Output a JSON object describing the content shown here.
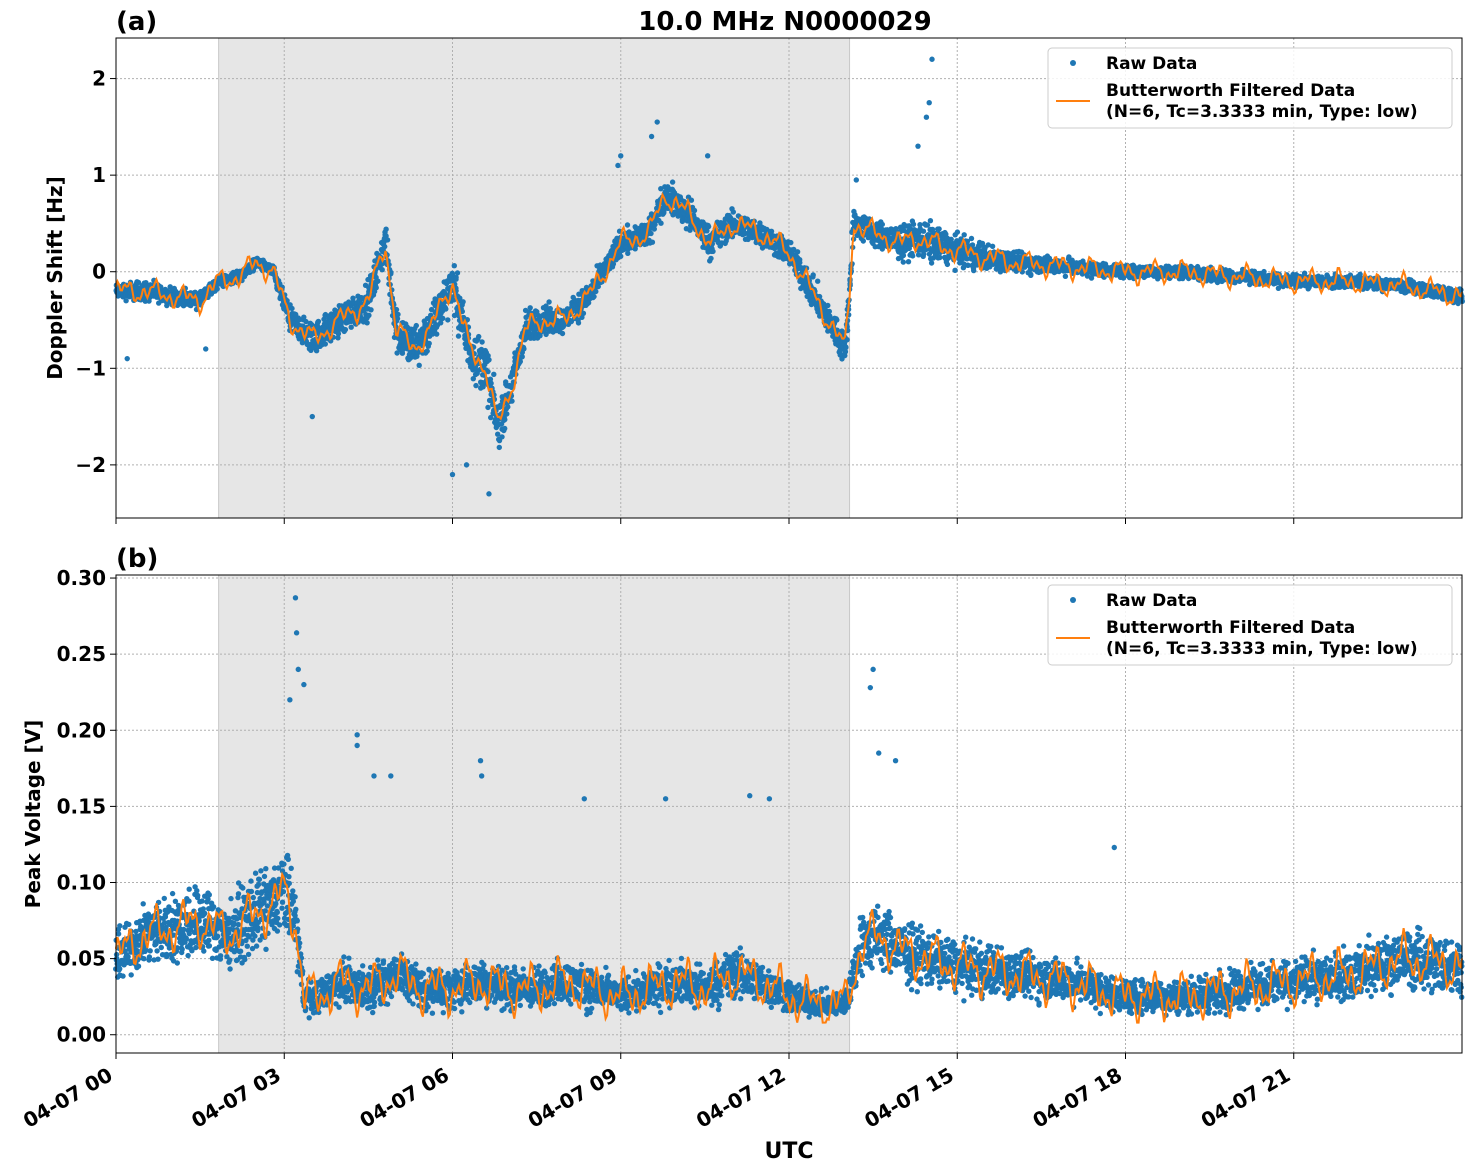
{
  "figure_title": "10.0 MHz N0000029",
  "xlabel": "UTC",
  "colors": {
    "raw": "#1f77b4",
    "filtered": "#ff7f0e",
    "shade": "#e6e6e6",
    "grid": "#b0b0b0",
    "legend_border": "#cccccc"
  },
  "legend": {
    "raw": "Raw Data",
    "filtered_line1": "Butterworth Filtered Data",
    "filtered_line2": "(N=6, Tc=3.3333 min, Type: low)"
  },
  "chart_data": [
    {
      "panel_label": "(a)",
      "type": "scatter",
      "ylabel": "Doppler Shift [Hz]",
      "x_unit": "hours UTC on 04-07",
      "xlim": [
        0,
        24
      ],
      "ylim": [
        -2.55,
        2.42
      ],
      "grid": true,
      "legend_position": "top-right",
      "shaded_interval_hours": [
        1.83,
        13.08
      ],
      "x_tick_values": [
        0,
        3,
        6,
        9,
        12,
        15,
        18,
        21
      ],
      "x_tick_labels": [
        "04-07 00",
        "04-07 03",
        "04-07 06",
        "04-07 09",
        "04-07 12",
        "04-07 15",
        "04-07 18",
        "04-07 21"
      ],
      "y_ticks": [
        2,
        1,
        0,
        -1,
        -2
      ],
      "y_tick_labels": [
        "2",
        "1",
        "0",
        "−1",
        "−2"
      ],
      "series": [
        {
          "name": "Raw Data",
          "style": "points",
          "envelope": {
            "x": [
              0,
              0.5,
              1,
              1.5,
              1.83,
              2.2,
              2.5,
              2.8,
              3.1,
              3.5,
              4,
              4.5,
              4.8,
              5,
              5.3,
              5.6,
              6,
              6.3,
              6.6,
              6.8,
              7,
              7.3,
              7.6,
              8,
              8.5,
              9,
              9.5,
              9.8,
              10.2,
              10.6,
              11,
              11.5,
              12,
              12.4,
              12.8,
              13.0,
              13.08,
              13.15,
              13.5,
              14,
              14.3,
              14.5,
              14.8,
              15.5,
              16,
              17,
              18,
              19,
              20,
              21,
              22,
              23,
              24
            ],
            "y": [
              -0.2,
              -0.2,
              -0.25,
              -0.3,
              -0.1,
              -0.05,
              0.1,
              0.0,
              -0.5,
              -0.7,
              -0.5,
              -0.3,
              0.3,
              -0.6,
              -0.8,
              -0.6,
              -0.1,
              -0.8,
              -1.0,
              -1.6,
              -1.3,
              -0.6,
              -0.5,
              -0.5,
              -0.2,
              0.3,
              0.4,
              0.8,
              0.6,
              0.3,
              0.5,
              0.4,
              0.2,
              -0.2,
              -0.6,
              -0.8,
              -0.2,
              0.5,
              0.4,
              0.3,
              0.35,
              0.3,
              0.25,
              0.15,
              0.1,
              0.05,
              0.0,
              0.0,
              -0.05,
              -0.1,
              -0.1,
              -0.15,
              -0.25
            ],
            "spread": [
              0.15,
              0.2,
              0.15,
              0.15,
              0.12,
              0.12,
              0.1,
              0.12,
              0.25,
              0.3,
              0.3,
              0.35,
              0.35,
              0.45,
              0.45,
              0.4,
              0.45,
              0.5,
              0.5,
              0.45,
              0.4,
              0.35,
              0.3,
              0.25,
              0.25,
              0.25,
              0.25,
              0.3,
              0.3,
              0.3,
              0.25,
              0.25,
              0.25,
              0.3,
              0.3,
              0.35,
              0.4,
              0.3,
              0.25,
              0.3,
              0.35,
              0.4,
              0.3,
              0.25,
              0.2,
              0.15,
              0.12,
              0.12,
              0.12,
              0.12,
              0.12,
              0.12,
              0.15
            ]
          },
          "outliers": [
            [
              14.55,
              2.2
            ],
            [
              14.5,
              1.75
            ],
            [
              14.45,
              1.6
            ],
            [
              9.65,
              1.55
            ],
            [
              9.55,
              1.4
            ],
            [
              14.3,
              1.3
            ],
            [
              9.0,
              1.2
            ],
            [
              8.95,
              1.1
            ],
            [
              10.55,
              1.2
            ],
            [
              13.2,
              0.95
            ],
            [
              6.65,
              -2.3
            ],
            [
              6.0,
              -2.1
            ],
            [
              6.25,
              -2.0
            ],
            [
              3.5,
              -1.5
            ],
            [
              1.6,
              -0.8
            ],
            [
              0.2,
              -0.9
            ]
          ]
        },
        {
          "name": "Butterworth Filtered Data",
          "style": "line",
          "x": [
            0,
            0.5,
            1,
            1.5,
            1.83,
            2.2,
            2.5,
            2.8,
            3.1,
            3.5,
            4,
            4.5,
            4.8,
            5,
            5.3,
            5.6,
            6,
            6.3,
            6.6,
            6.8,
            7,
            7.3,
            7.6,
            8,
            8.5,
            9,
            9.5,
            9.8,
            10.2,
            10.6,
            11,
            11.5,
            12,
            12.4,
            12.8,
            13.0,
            13.08,
            13.15,
            13.5,
            14,
            14.3,
            14.5,
            14.8,
            15.5,
            16,
            17,
            18,
            19,
            20,
            21,
            22,
            23,
            24
          ],
          "y": [
            -0.2,
            -0.2,
            -0.25,
            -0.3,
            -0.1,
            -0.05,
            0.1,
            0.0,
            -0.5,
            -0.7,
            -0.5,
            -0.3,
            0.3,
            -0.6,
            -0.8,
            -0.6,
            -0.1,
            -0.8,
            -1.0,
            -1.6,
            -1.3,
            -0.6,
            -0.5,
            -0.5,
            -0.2,
            0.3,
            0.4,
            0.8,
            0.6,
            0.3,
            0.5,
            0.4,
            0.2,
            -0.2,
            -0.6,
            -0.8,
            -0.2,
            0.5,
            0.4,
            0.3,
            0.35,
            0.3,
            0.25,
            0.15,
            0.1,
            0.05,
            0.0,
            0.0,
            -0.05,
            -0.1,
            -0.1,
            -0.15,
            -0.25
          ],
          "wiggle": 0.12
        }
      ]
    },
    {
      "panel_label": "(b)",
      "type": "scatter",
      "ylabel": "Peak Voltage [V]",
      "x_unit": "hours UTC on 04-07",
      "xlim": [
        0,
        24
      ],
      "ylim": [
        -0.012,
        0.302
      ],
      "grid": true,
      "legend_position": "top-right",
      "shaded_interval_hours": [
        1.83,
        13.08
      ],
      "x_tick_values": [
        0,
        3,
        6,
        9,
        12,
        15,
        18,
        21
      ],
      "x_tick_labels": [
        "04-07 00",
        "04-07 03",
        "04-07 06",
        "04-07 09",
        "04-07 12",
        "04-07 15",
        "04-07 18",
        "04-07 21"
      ],
      "y_ticks": [
        0.0,
        0.05,
        0.1,
        0.15,
        0.2,
        0.25,
        0.3
      ],
      "y_tick_labels": [
        "0.00",
        "0.05",
        "0.10",
        "0.15",
        "0.20",
        "0.25",
        "0.30"
      ],
      "series": [
        {
          "name": "Raw Data",
          "style": "points",
          "envelope": {
            "x": [
              0,
              0.5,
              1,
              1.5,
              2,
              2.5,
              2.8,
              3.0,
              3.2,
              3.35,
              3.6,
              4,
              4.5,
              5,
              5.5,
              6,
              6.5,
              7,
              7.5,
              8,
              8.5,
              9,
              9.5,
              10,
              10.5,
              11,
              11.5,
              12,
              12.5,
              13.0,
              13.3,
              13.6,
              14,
              14.5,
              15,
              16,
              17,
              18,
              19,
              20,
              21,
              22,
              23,
              24
            ],
            "y": [
              0.05,
              0.065,
              0.07,
              0.075,
              0.065,
              0.08,
              0.085,
              0.095,
              0.075,
              0.025,
              0.025,
              0.035,
              0.03,
              0.04,
              0.03,
              0.03,
              0.035,
              0.03,
              0.03,
              0.035,
              0.03,
              0.025,
              0.03,
              0.035,
              0.03,
              0.04,
              0.035,
              0.025,
              0.02,
              0.02,
              0.06,
              0.065,
              0.055,
              0.05,
              0.045,
              0.04,
              0.035,
              0.025,
              0.025,
              0.03,
              0.035,
              0.04,
              0.05,
              0.045
            ],
            "spread": [
              0.03,
              0.035,
              0.04,
              0.045,
              0.04,
              0.045,
              0.045,
              0.05,
              0.045,
              0.02,
              0.02,
              0.025,
              0.025,
              0.03,
              0.025,
              0.025,
              0.025,
              0.025,
              0.025,
              0.025,
              0.025,
              0.02,
              0.025,
              0.025,
              0.025,
              0.03,
              0.025,
              0.02,
              0.015,
              0.015,
              0.04,
              0.04,
              0.035,
              0.035,
              0.03,
              0.03,
              0.025,
              0.02,
              0.02,
              0.025,
              0.025,
              0.03,
              0.035,
              0.035
            ]
          },
          "outliers": [
            [
              3.2,
              0.287
            ],
            [
              3.22,
              0.264
            ],
            [
              3.25,
              0.24
            ],
            [
              3.1,
              0.22
            ],
            [
              3.35,
              0.23
            ],
            [
              13.5,
              0.24
            ],
            [
              13.45,
              0.228
            ],
            [
              13.6,
              0.185
            ],
            [
              4.3,
              0.197
            ],
            [
              4.3,
              0.19
            ],
            [
              6.5,
              0.18
            ],
            [
              6.52,
              0.17
            ],
            [
              4.6,
              0.17
            ],
            [
              4.9,
              0.17
            ],
            [
              8.35,
              0.155
            ],
            [
              11.3,
              0.157
            ],
            [
              11.65,
              0.155
            ],
            [
              9.8,
              0.155
            ],
            [
              13.9,
              0.18
            ],
            [
              17.8,
              0.123
            ]
          ]
        },
        {
          "name": "Butterworth Filtered Data",
          "style": "line",
          "x": [
            0,
            0.5,
            1,
            1.5,
            2,
            2.5,
            2.8,
            3.0,
            3.2,
            3.35,
            3.6,
            4,
            4.5,
            5,
            5.5,
            6,
            6.5,
            7,
            7.5,
            8,
            8.5,
            9,
            9.5,
            10,
            10.5,
            11,
            11.5,
            12,
            12.5,
            13.0,
            13.3,
            13.6,
            14,
            14.5,
            15,
            16,
            17,
            18,
            19,
            20,
            21,
            22,
            23,
            24
          ],
          "y": [
            0.05,
            0.065,
            0.07,
            0.075,
            0.065,
            0.08,
            0.085,
            0.095,
            0.075,
            0.025,
            0.025,
            0.035,
            0.03,
            0.04,
            0.03,
            0.03,
            0.035,
            0.03,
            0.03,
            0.035,
            0.03,
            0.025,
            0.03,
            0.035,
            0.03,
            0.04,
            0.035,
            0.025,
            0.02,
            0.02,
            0.06,
            0.065,
            0.055,
            0.05,
            0.045,
            0.04,
            0.035,
            0.025,
            0.025,
            0.03,
            0.035,
            0.04,
            0.05,
            0.045
          ],
          "wiggle": 0.016
        }
      ]
    }
  ]
}
